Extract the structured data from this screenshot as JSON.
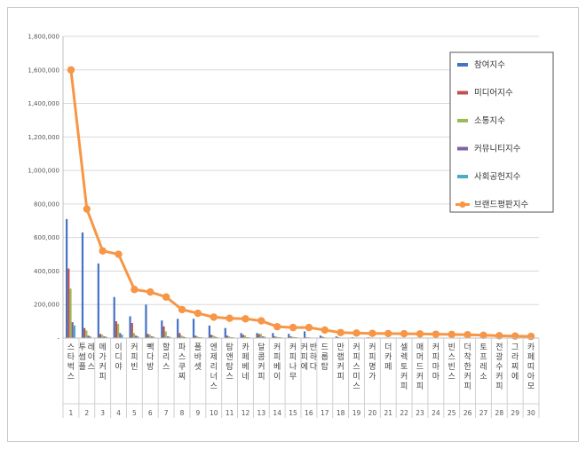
{
  "chart_data": {
    "type": "bar",
    "title": "",
    "xlabel": "",
    "ylabel": "",
    "ylim": [
      0,
      1800000
    ],
    "yticks": [
      "1,800,000",
      "1,600,000",
      "1,400,000",
      "1,200,000",
      "1,000,000",
      "800,000",
      "600,000",
      "400,000",
      "200,000",
      "-"
    ],
    "ytick_values": [
      1800000,
      1600000,
      1400000,
      1200000,
      1000000,
      800000,
      600000,
      400000,
      200000,
      0
    ],
    "grid": true,
    "legend_position": "right",
    "categories": [
      "스타벅스",
      "투썸플레이스",
      "메가커피",
      "이디야",
      "커피빈",
      "빽다방",
      "할리스",
      "파스쿠찌",
      "폴바셋",
      "엔제리너스",
      "탐앤탐스",
      "카페베네",
      "달콤커피",
      "커피베이",
      "커피나무",
      "커피에반하다",
      "드롭탑",
      "만랩커피",
      "커피스미스",
      "커피명가",
      "더카페",
      "셀렉토커피",
      "매머드커피",
      "커피마마",
      "빈스빈스",
      "더착한커피",
      "토프레소",
      "전광수커피",
      "그라찌에",
      "카페띠아모"
    ],
    "ranks": [
      "1",
      "2",
      "3",
      "4",
      "5",
      "6",
      "7",
      "8",
      "9",
      "10",
      "11",
      "12",
      "13",
      "14",
      "15",
      "16",
      "17",
      "18",
      "19",
      "20",
      "21",
      "22",
      "23",
      "24",
      "25",
      "26",
      "27",
      "28",
      "29",
      "30"
    ],
    "series": [
      {
        "name": "참여지수",
        "kind": "bar",
        "color": "#4472c4",
        "values": [
          710000,
          630000,
          445000,
          245000,
          130000,
          200000,
          105000,
          115000,
          115000,
          75000,
          60000,
          30000,
          30000,
          30000,
          25000,
          40000,
          15000,
          10000,
          5000,
          5000,
          3000,
          3000,
          3000,
          3000,
          2000,
          2000,
          2000,
          1500,
          1000,
          1000
        ]
      },
      {
        "name": "미디어지수",
        "kind": "bar",
        "color": "#c0504d",
        "values": [
          415000,
          60000,
          25000,
          100000,
          90000,
          25000,
          70000,
          30000,
          15000,
          20000,
          15000,
          20000,
          25000,
          10000,
          10000,
          5000,
          8000,
          5000,
          3000,
          3000,
          3000,
          3000,
          2000,
          2000,
          2000,
          2000,
          1500,
          1500,
          1000,
          1000
        ]
      },
      {
        "name": "소통지수",
        "kind": "bar",
        "color": "#9bbb59",
        "values": [
          295000,
          45000,
          20000,
          85000,
          30000,
          20000,
          40000,
          15000,
          10000,
          15000,
          10000,
          15000,
          25000,
          8000,
          8000,
          5000,
          5000,
          3000,
          3000,
          3000,
          2000,
          2000,
          2000,
          2000,
          1500,
          1500,
          1500,
          1000,
          1000,
          1000
        ]
      },
      {
        "name": "커뮤니티지수",
        "kind": "bar",
        "color": "#8064a2",
        "values": [
          95000,
          15000,
          10000,
          30000,
          15000,
          10000,
          10000,
          8000,
          5000,
          8000,
          5000,
          5000,
          10000,
          5000,
          5000,
          3000,
          3000,
          2000,
          2000,
          2000,
          1500,
          1500,
          1500,
          1500,
          1000,
          1000,
          1000,
          1000,
          800,
          800
        ]
      },
      {
        "name": "사회공헌지수",
        "kind": "bar",
        "color": "#4bacc6",
        "values": [
          75000,
          10000,
          8000,
          20000,
          10000,
          8000,
          8000,
          5000,
          5000,
          5000,
          5000,
          5000,
          8000,
          5000,
          5000,
          3000,
          3000,
          2000,
          2000,
          2000,
          1500,
          1500,
          1500,
          1500,
          1000,
          1000,
          1000,
          1000,
          800,
          800
        ]
      },
      {
        "name": "브랜드평판지수",
        "kind": "line",
        "color": "#f79646",
        "values": [
          1600000,
          770000,
          520000,
          500000,
          290000,
          275000,
          245000,
          170000,
          148000,
          125000,
          118000,
          115000,
          103000,
          68000,
          63000,
          63000,
          48000,
          33000,
          30000,
          28000,
          27000,
          26000,
          25000,
          23000,
          22000,
          20000,
          17000,
          14000,
          12000,
          10000
        ]
      }
    ]
  }
}
